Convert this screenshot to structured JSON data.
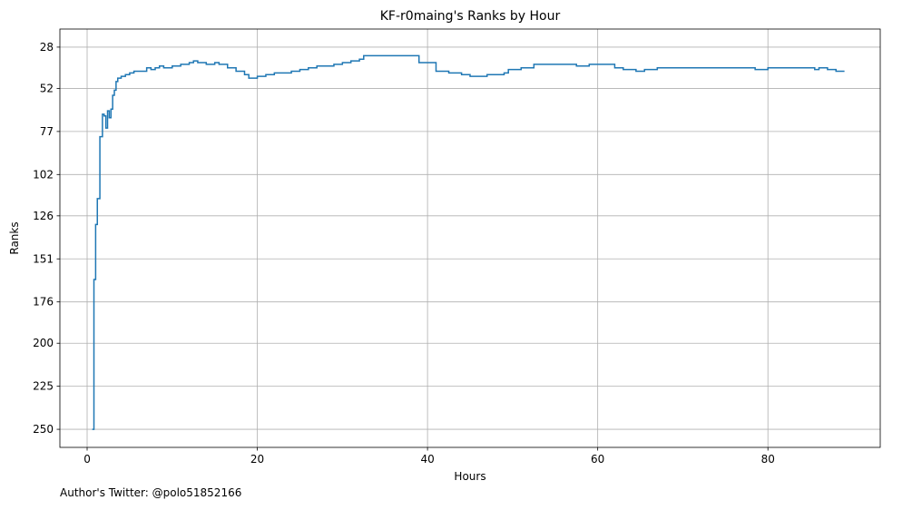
{
  "footer": "Author's Twitter: @polo51852166",
  "chart_data": {
    "type": "line",
    "step": "post",
    "title": "KF-r0maing's Ranks by Hour",
    "xlabel": "Hours",
    "ylabel": "Ranks",
    "xlim": [
      -3.2,
      93.2
    ],
    "ylim": [
      260.5,
      17.5
    ],
    "y_inverted": true,
    "grid": true,
    "line_color": "#1f77b4",
    "xticks": [
      0,
      20,
      40,
      60,
      80
    ],
    "yticks": [
      28,
      52,
      77,
      102,
      126,
      151,
      176,
      200,
      225,
      250
    ],
    "series": [
      {
        "x": [
          0.6,
          0.8,
          1.0,
          1.2,
          1.5,
          1.8,
          2.0,
          2.2,
          2.4,
          2.6,
          2.8,
          3.0,
          3.2,
          3.4,
          3.6,
          4.0,
          4.5,
          5.0,
          5.5,
          6.0,
          7.0,
          7.5,
          8.0,
          8.5,
          9.0,
          10.0,
          11.0,
          12.0,
          12.5,
          13.0,
          14.0,
          15.0,
          15.5,
          16.5,
          17.5,
          18.5,
          19.0,
          20.0,
          21.0,
          22.0,
          24.0,
          25.0,
          26.0,
          27.0,
          29.0,
          30.0,
          31.0,
          32.0,
          32.5,
          39.0,
          41.0,
          42.5,
          44.0,
          45.0,
          47.0,
          49.0,
          49.5,
          51.0,
          52.5,
          56.5,
          57.5,
          59.0,
          62.0,
          63.0,
          64.5,
          65.5,
          67.0,
          78.0,
          78.5,
          80.0,
          84.0,
          85.5,
          86.0,
          87.0,
          88.0,
          89.0
        ],
        "y": [
          250,
          163,
          131,
          116,
          80,
          67,
          68,
          75,
          65,
          69,
          64,
          56,
          53,
          48,
          46,
          45,
          44,
          43,
          42,
          42,
          40,
          41,
          40,
          39,
          40,
          39,
          38,
          37,
          36,
          37,
          38,
          37,
          38,
          40,
          42,
          44,
          46,
          45,
          44,
          43,
          42,
          41,
          40,
          39,
          38,
          37,
          36,
          35,
          33,
          37,
          42,
          43,
          44,
          45,
          44,
          43,
          41,
          40,
          38,
          38,
          39,
          38,
          40,
          41,
          42,
          41,
          40,
          40,
          41,
          40,
          40,
          41,
          40,
          41,
          42,
          42
        ]
      }
    ]
  }
}
